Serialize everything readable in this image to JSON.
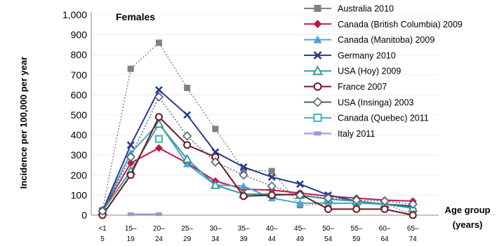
{
  "chart_data": {
    "type": "line",
    "title": "Females",
    "ylabel": "Incidence per 100,000 per year",
    "xlabel": "Age group (years)",
    "ylim": [
      0,
      1000
    ],
    "yticks": [
      "0",
      "100",
      "200",
      "300",
      "400",
      "500",
      "600",
      "700",
      "800",
      "900",
      "1,000"
    ],
    "categories": [
      [
        "<1",
        "5"
      ],
      [
        "15–",
        "19"
      ],
      [
        "20–",
        "24"
      ],
      [
        "25–",
        "29"
      ],
      [
        "30–",
        "34"
      ],
      [
        "35–",
        "39"
      ],
      [
        "40–",
        "44"
      ],
      [
        "45–",
        "49"
      ],
      [
        "50–",
        "54"
      ],
      [
        "55–",
        "59"
      ],
      [
        "60–",
        "64"
      ],
      [
        "65–",
        "74"
      ]
    ],
    "series": [
      {
        "name": "Australia 2010",
        "color": "#808080",
        "marker": "square",
        "dash": true,
        "values": [
          25,
          730,
          860,
          635,
          430,
          225,
          220,
          50,
          55,
          60,
          60,
          0
        ]
      },
      {
        "name": "Canada (British Columbia) 2009",
        "color": "#c0184c",
        "marker": "diamond",
        "dash": false,
        "values": [
          20,
          260,
          335,
          260,
          170,
          130,
          125,
          110,
          95,
          85,
          75,
          70
        ]
      },
      {
        "name": "Canada (Manitoba) 2009",
        "color": "#4aa3d9",
        "marker": "triangle",
        "dash": false,
        "values": [
          20,
          310,
          460,
          255,
          150,
          145,
          85,
          60,
          60,
          60,
          55,
          40
        ]
      },
      {
        "name": "Germany 2010",
        "color": "#283a8c",
        "marker": "x",
        "dash": false,
        "values": [
          20,
          350,
          625,
          500,
          315,
          240,
          190,
          155,
          100,
          70,
          55,
          45
        ]
      },
      {
        "name": "USA (Hoy) 2009",
        "color": "#3a9b96",
        "marker": "triangle-open",
        "dash": false,
        "values": [
          20,
          220,
          455,
          280,
          150,
          105,
          105,
          100,
          80,
          70,
          55,
          35
        ]
      },
      {
        "name": "France 2007",
        "color": "#6e1820",
        "marker": "circle-open",
        "dash": false,
        "values": [
          0,
          200,
          490,
          350,
          290,
          95,
          100,
          105,
          30,
          30,
          30,
          0
        ]
      },
      {
        "name": "USA (Insinga) 2003",
        "color": "#4f6078",
        "marker": "diamond-open",
        "dash": true,
        "values": [
          20,
          290,
          590,
          395,
          265,
          200,
          145,
          100,
          85,
          75,
          70,
          55
        ]
      },
      {
        "name": "Canada (Quebec) 2011",
        "color": "#3fb6b6",
        "marker": "square-open",
        "dash": false,
        "values": [
          null,
          null,
          380,
          null,
          null,
          null,
          null,
          null,
          null,
          null,
          null,
          null
        ]
      },
      {
        "name": "Italy 2011",
        "color": "#9a9ad8",
        "marker": "bar",
        "dash": false,
        "values": [
          null,
          5,
          5,
          null,
          null,
          null,
          null,
          null,
          null,
          null,
          null,
          null
        ]
      }
    ]
  }
}
